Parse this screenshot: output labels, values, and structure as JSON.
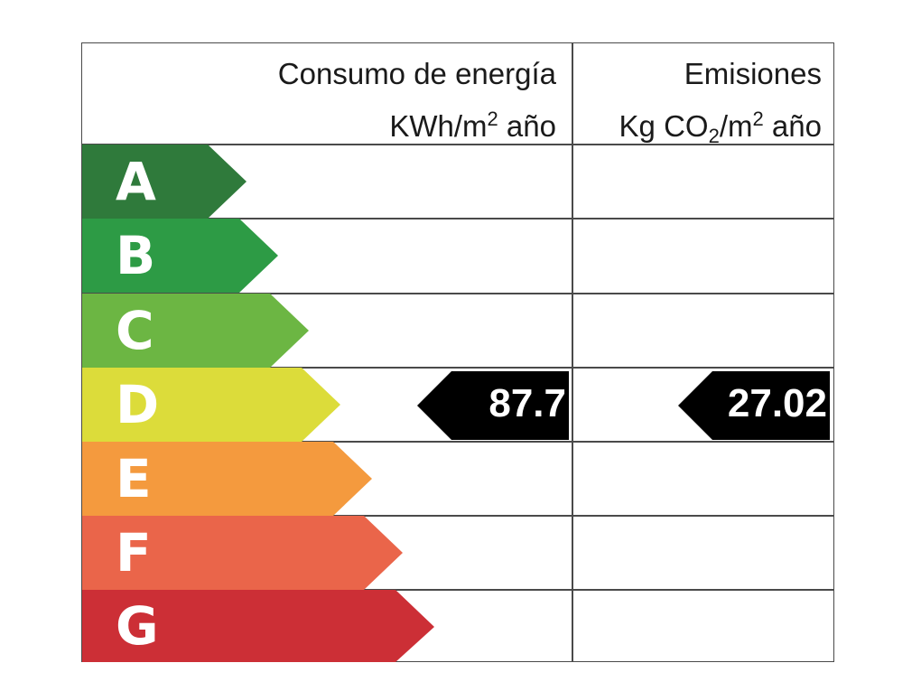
{
  "header": {
    "energy_title": "Consumo de energía",
    "energy_unit_a": "KWh/m",
    "energy_unit_sup": "2",
    "energy_unit_b": " año",
    "emissions_title": "Emisiones",
    "emissions_unit_a": "Kg CO",
    "emissions_unit_sub": "2",
    "emissions_unit_b": "/m",
    "emissions_unit_sup": "2",
    "emissions_unit_c": " año"
  },
  "bands": [
    {
      "letter": "A",
      "color": "#2f7a3b"
    },
    {
      "letter": "B",
      "color": "#2d9b45"
    },
    {
      "letter": "C",
      "color": "#6cb643"
    },
    {
      "letter": "D",
      "color": "#dcdc3a"
    },
    {
      "letter": "E",
      "color": "#f49a3e"
    },
    {
      "letter": "F",
      "color": "#ea654a"
    },
    {
      "letter": "G",
      "color": "#cc2f36"
    }
  ],
  "rating": {
    "band": "D",
    "energy_value": "87.7",
    "emissions_value": "27.02",
    "marker_color": "#000000"
  }
}
